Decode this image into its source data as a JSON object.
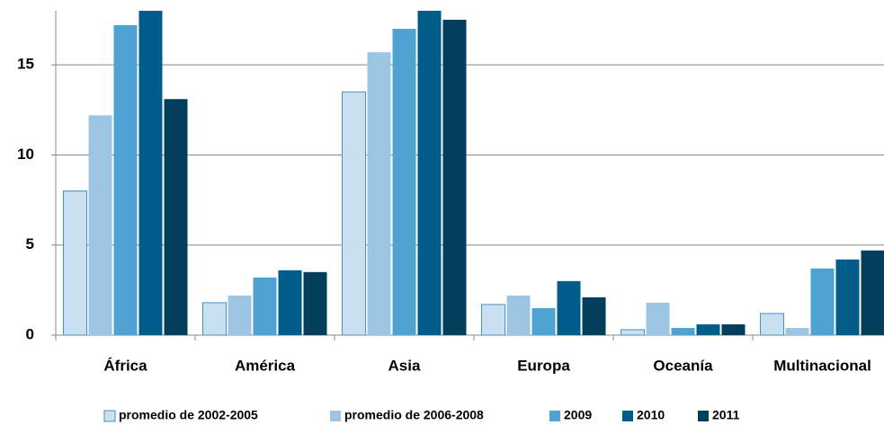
{
  "chart_data": {
    "type": "bar",
    "categories": [
      "África",
      "América",
      "Asia",
      "Europa",
      "Oceanía",
      "Multinacional"
    ],
    "series": [
      {
        "name": "promedio de 2002-2005",
        "color": "#c9e0f1",
        "values": [
          8.0,
          1.8,
          13.5,
          1.7,
          0.3,
          1.2
        ]
      },
      {
        "name": "promedio de 2006-2008",
        "color": "#9cc5e4",
        "values": [
          12.2,
          2.2,
          15.7,
          2.2,
          1.8,
          0.4
        ]
      },
      {
        "name": "2009",
        "color": "#4fa3d3",
        "values": [
          17.2,
          3.2,
          17.0,
          1.5,
          0.4,
          3.7
        ]
      },
      {
        "name": "2010",
        "color": "#005d8a",
        "values": [
          18,
          3.6,
          18,
          3.0,
          0.6,
          4.2
        ]
      },
      {
        "name": "2011",
        "color": "#033e5c",
        "values": [
          13.1,
          3.5,
          17.5,
          2.1,
          0.6,
          4.7
        ]
      }
    ],
    "ylim": [
      0,
      18
    ],
    "yticks": [
      0,
      5,
      10,
      15
    ],
    "grid": true
  }
}
